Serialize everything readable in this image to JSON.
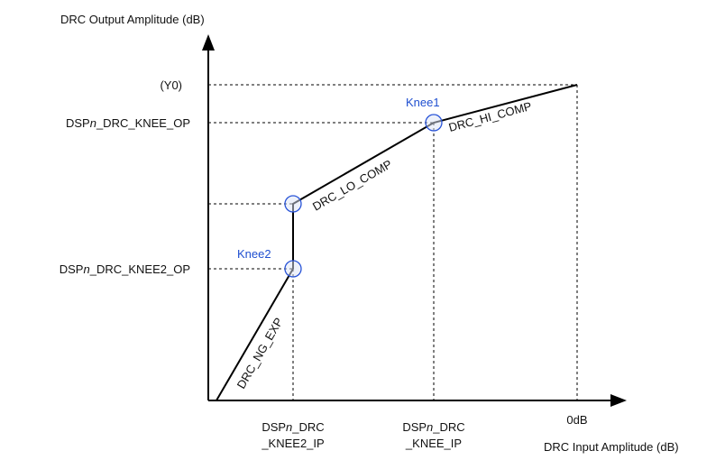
{
  "axes": {
    "y_title": "DRC Output Amplitude (dB)",
    "x_title": "DRC Input Amplitude (dB)"
  },
  "y_labels": {
    "y0": "(Y0)",
    "knee_op": {
      "prefix": "DSP",
      "italic": "n",
      "suffix": "_DRC_KNEE_OP"
    },
    "knee2_op": {
      "prefix": "DSP",
      "italic": "n",
      "suffix": "_DRC_KNEE2_OP"
    }
  },
  "x_labels": {
    "knee2_ip": {
      "prefix": "DSP",
      "italic": "n",
      "suffix": "_DRC",
      "line2": "_KNEE2_IP"
    },
    "knee_ip": {
      "prefix": "DSP",
      "italic": "n",
      "suffix": "_DRC",
      "line2": "_KNEE_IP"
    },
    "zero": "0dB"
  },
  "knees": {
    "knee1": "Knee1",
    "knee2": "Knee2"
  },
  "segments": {
    "ng_exp": "DRC_NG_EXP",
    "lo_comp": "DRC_LO_COMP",
    "hi_comp": "DRC_HI_COMP"
  },
  "colors": {
    "knee_label": "#1f4fd0",
    "knee_marker": "#2a55d8",
    "lines": "#000000"
  }
}
